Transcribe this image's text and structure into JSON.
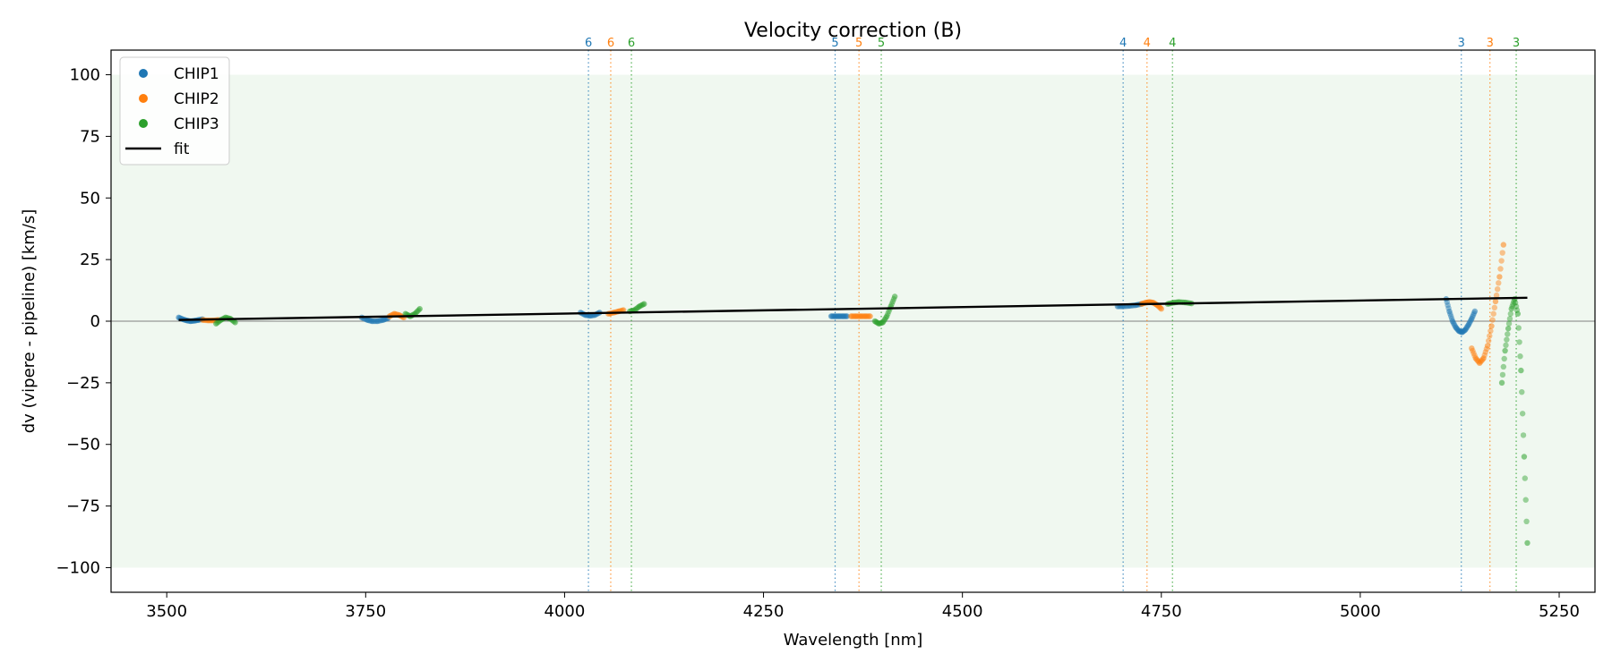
{
  "chart_data": {
    "type": "scatter",
    "title": "Velocity correction (B)",
    "xlabel": "Wavelength [nm]",
    "ylabel": "dv (vipere - pipeline) [km/s]",
    "xlim": [
      3430,
      5295
    ],
    "ylim": [
      -110,
      110
    ],
    "xticks": [
      3500,
      3750,
      4000,
      4250,
      4500,
      4750,
      5000,
      5250
    ],
    "yticks": [
      -100,
      -75,
      -50,
      -25,
      0,
      25,
      50,
      75,
      100
    ],
    "grid": false,
    "legend_position": "top-left",
    "shaded_band": {
      "y": [
        -100,
        100
      ],
      "color": "#2ca02c"
    },
    "zero_line": 0,
    "colors": {
      "CHIP1": "#1f77b4",
      "CHIP2": "#ff7f0e",
      "CHIP3": "#2ca02c",
      "fit": "#000000"
    },
    "series": [
      {
        "name": "CHIP1",
        "segments": [
          {
            "x": [
              3515,
              3520,
              3525,
              3530,
              3535,
              3540,
              3545
            ],
            "y": [
              1.5,
              0.8,
              0.3,
              0.0,
              0.2,
              0.5,
              0.8
            ]
          },
          {
            "x": [
              3745,
              3752,
              3758,
              3765,
              3772,
              3778
            ],
            "y": [
              1.5,
              0.5,
              0.0,
              0.0,
              0.5,
              1.2
            ]
          },
          {
            "x": [
              4020,
              4026,
              4032,
              4038,
              4044
            ],
            "y": [
              3.5,
              2.5,
              2.2,
              2.5,
              3.5
            ]
          },
          {
            "x": [
              4335,
              4340,
              4345,
              4350,
              4355
            ],
            "y": [
              2,
              2,
              2,
              2,
              2
            ]
          },
          {
            "x": [
              4695,
              4702,
              4710,
              4718,
              4725
            ],
            "y": [
              6,
              6,
              6.2,
              6.5,
              7
            ]
          },
          {
            "x": [
              5108,
              5112,
              5116,
              5120,
              5124,
              5128,
              5132,
              5136,
              5140,
              5144
            ],
            "y": [
              9,
              4,
              0,
              -2.5,
              -4,
              -4.5,
              -3.5,
              -1.5,
              1,
              4
            ]
          }
        ]
      },
      {
        "name": "CHIP2",
        "segments": [
          {
            "x": [
              3545,
              3552,
              3558,
              3565
            ],
            "y": [
              0.5,
              0.3,
              0.3,
              0.5
            ]
          },
          {
            "x": [
              3780,
              3786,
              3792,
              3798
            ],
            "y": [
              2,
              3,
              2.5,
              1.5
            ]
          },
          {
            "x": [
              4055,
              4062,
              4068,
              4074
            ],
            "y": [
              3,
              3.5,
              4,
              4.5
            ]
          },
          {
            "x": [
              4360,
              4366,
              4372,
              4378,
              4384
            ],
            "y": [
              2,
              2,
              2,
              2,
              2
            ]
          },
          {
            "x": [
              4725,
              4730,
              4735,
              4740,
              4745,
              4750
            ],
            "y": [
              7,
              7.5,
              7.8,
              7.5,
              6.5,
              5
            ]
          },
          {
            "x": [
              5140,
              5145,
              5150,
              5155,
              5160,
              5165,
              5170,
              5175,
              5180
            ],
            "y": [
              -11,
              -15,
              -17,
              -15,
              -10,
              -2,
              8,
              18,
              31
            ]
          }
        ]
      },
      {
        "name": "CHIP3",
        "segments": [
          {
            "x": [
              3562,
              3568,
              3574,
              3580,
              3586
            ],
            "y": [
              -1,
              0.5,
              1.5,
              1.0,
              -0.5
            ]
          },
          {
            "x": [
              3800,
              3806,
              3812,
              3818
            ],
            "y": [
              3,
              2,
              3,
              5
            ]
          },
          {
            "x": [
              4082,
              4088,
              4094,
              4100
            ],
            "y": [
              4,
              4.5,
              6,
              7
            ]
          },
          {
            "x": [
              4390,
              4395,
              4400,
              4405,
              4410,
              4415
            ],
            "y": [
              0,
              -1,
              -0.5,
              2,
              6,
              10
            ]
          },
          {
            "x": [
              4758,
              4765,
              4772,
              4780,
              4788
            ],
            "y": [
              7,
              7.5,
              7.8,
              7.6,
              7.2
            ]
          },
          {
            "x": [
              5178,
              5182,
              5186,
              5190,
              5194,
              5198,
              5202,
              5206,
              5210
            ],
            "y": [
              -25,
              -12,
              -3,
              5,
              9,
              3,
              -20,
              -55,
              -90
            ]
          }
        ]
      }
    ],
    "fit": {
      "name": "fit",
      "x": [
        3515,
        5210
      ],
      "y": [
        0.5,
        9.5
      ]
    },
    "order_markers": [
      {
        "label": "6",
        "series": "CHIP1",
        "x": 4030
      },
      {
        "label": "6",
        "series": "CHIP2",
        "x": 4058
      },
      {
        "label": "6",
        "series": "CHIP3",
        "x": 4084
      },
      {
        "label": "5",
        "series": "CHIP1",
        "x": 4340
      },
      {
        "label": "5",
        "series": "CHIP2",
        "x": 4370
      },
      {
        "label": "5",
        "series": "CHIP3",
        "x": 4398
      },
      {
        "label": "4",
        "series": "CHIP1",
        "x": 4702
      },
      {
        "label": "4",
        "series": "CHIP2",
        "x": 4732
      },
      {
        "label": "4",
        "series": "CHIP3",
        "x": 4764
      },
      {
        "label": "3",
        "series": "CHIP1",
        "x": 5127
      },
      {
        "label": "3",
        "series": "CHIP2",
        "x": 5163
      },
      {
        "label": "3",
        "series": "CHIP3",
        "x": 5196
      }
    ],
    "legend": [
      "CHIP1",
      "CHIP2",
      "CHIP3",
      "fit"
    ]
  }
}
